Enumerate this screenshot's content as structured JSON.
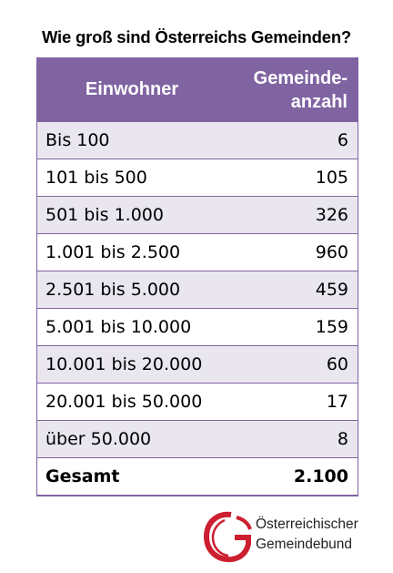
{
  "title": "Wie groß sind Österreichs Gemeinden?",
  "table": {
    "header_col1": "Einwohner",
    "header_col2_line1": "Gemeinde-",
    "header_col2_line2": "anzahl",
    "rows": [
      {
        "label": "Bis 100",
        "value": "6"
      },
      {
        "label": "101 bis 500",
        "value": "105"
      },
      {
        "label": "501 bis 1.000",
        "value": "326"
      },
      {
        "label": "1.001 bis 2.500",
        "value": "960"
      },
      {
        "label": "2.501 bis 5.000",
        "value": "459"
      },
      {
        "label": "5.001 bis 10.000",
        "value": "159"
      },
      {
        "label": "10.001 bis 20.000",
        "value": "60"
      },
      {
        "label": "20.001 bis 50.000",
        "value": "17"
      },
      {
        "label": "über 50.000",
        "value": "8"
      }
    ],
    "total": {
      "label": "Gesamt",
      "value": "2.100"
    }
  },
  "logo": {
    "icon": "gemeindebund-logo-icon",
    "line1": "Österreichischer",
    "line2": "Gemeindebund"
  },
  "colors": {
    "header_bg": "#8064a2",
    "row_alt_bg": "#e9e6f0",
    "logo_red": "#cc1f2f"
  }
}
